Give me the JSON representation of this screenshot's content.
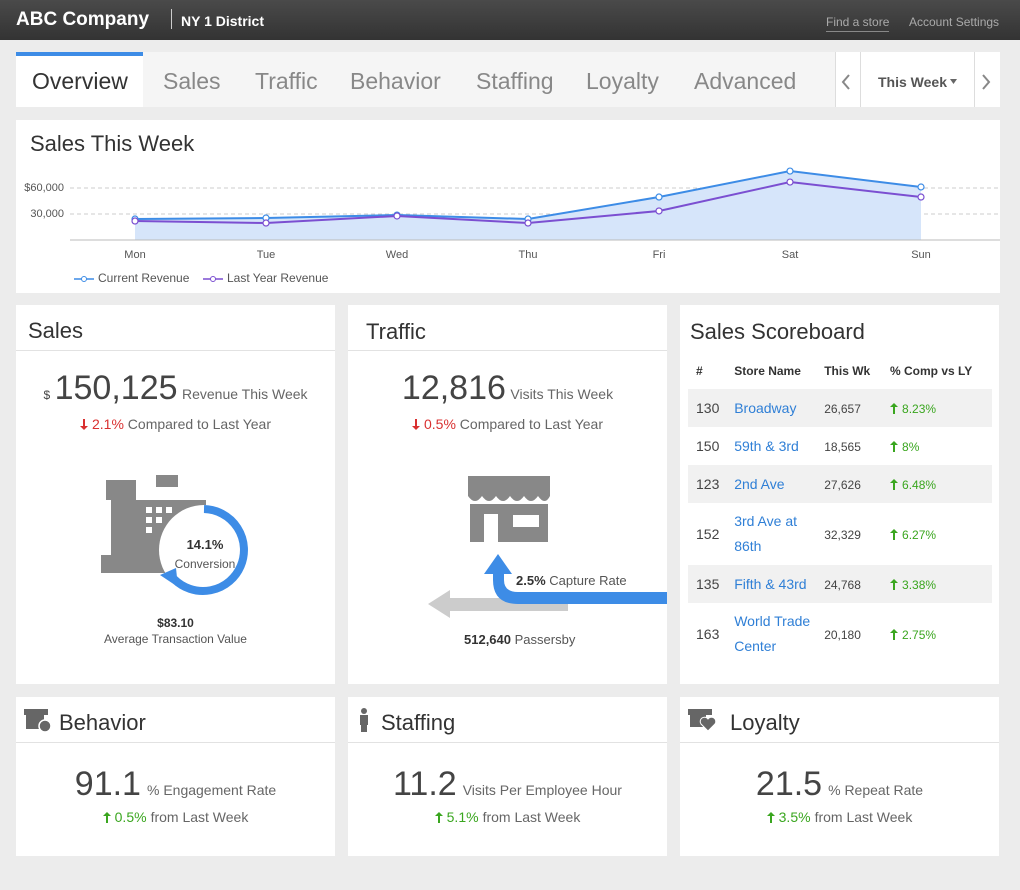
{
  "header": {
    "company": "ABC Company",
    "district": "NY 1 District",
    "links": [
      "Find a store",
      "Account Settings"
    ]
  },
  "tabs": [
    "Overview",
    "Sales",
    "Traffic",
    "Behavior",
    "Staffing",
    "Loyalty",
    "Advanced"
  ],
  "period": "This Week",
  "chart_data": {
    "type": "line",
    "title": "Sales This Week",
    "categories": [
      "Mon",
      "Tue",
      "Wed",
      "Thu",
      "Fri",
      "Sat",
      "Sun"
    ],
    "series": [
      {
        "name": "Current Revenue",
        "color": "#3d8ce6",
        "values": [
          24200,
          25400,
          28800,
          24200,
          49600,
          79600,
          61200
        ]
      },
      {
        "name": "Last Year Revenue",
        "color": "#7b4fd1",
        "values": [
          21900,
          19600,
          27700,
          19600,
          33500,
          66900,
          49600
        ]
      }
    ],
    "ylim": [
      0,
      80000
    ],
    "yticks": [
      {
        "value": 30000,
        "label": "30,000"
      },
      {
        "value": 60000,
        "label": "$60,000"
      }
    ],
    "grid": true
  },
  "sales": {
    "title": "Sales",
    "currency": "$",
    "value": "150,125",
    "label": "Revenue This Week",
    "change": "2.1%",
    "change_label": "Compared to Last Year",
    "conversion": "14.1%",
    "conversion_label": "Conversion",
    "atv": "$83.10",
    "atv_label": "Average Transaction Value"
  },
  "traffic": {
    "title": "Traffic",
    "value": "12,816",
    "label": "Visits This Week",
    "change": "0.5%",
    "change_label": "Compared to Last Year",
    "capture": "2.5%",
    "capture_label": "Capture Rate",
    "passersby": "512,640",
    "passersby_label": "Passersby"
  },
  "scoreboard": {
    "title": "Sales Scoreboard",
    "columns": [
      "#",
      "Store Name",
      "This Wk",
      "% Comp vs LY"
    ],
    "rows": [
      [
        "130",
        "Broadway",
        "26,657",
        "8.23%"
      ],
      [
        "150",
        "59th & 3rd",
        "18,565",
        "8%"
      ],
      [
        "123",
        "2nd Ave",
        "27,626",
        "6.48%"
      ],
      [
        "152",
        "3rd Ave at 86th",
        "32,329",
        "6.27%"
      ],
      [
        "135",
        "Fifth & 43rd",
        "24,768",
        "3.38%"
      ],
      [
        "163",
        "World Trade Center",
        "20,180",
        "2.75%"
      ]
    ]
  },
  "behavior": {
    "title": "Behavior",
    "value": "91.1",
    "unit": "% Engagement Rate",
    "change": "0.5%",
    "change_label": "from Last Week"
  },
  "staffing": {
    "title": "Staffing",
    "value": "11.2",
    "unit": "Visits Per Employee Hour",
    "change": "5.1%",
    "change_label": "from Last Week"
  },
  "loyalty": {
    "title": "Loyalty",
    "value": "21.5",
    "unit": "% Repeat Rate",
    "change": "3.5%",
    "change_label": "from Last Week"
  }
}
